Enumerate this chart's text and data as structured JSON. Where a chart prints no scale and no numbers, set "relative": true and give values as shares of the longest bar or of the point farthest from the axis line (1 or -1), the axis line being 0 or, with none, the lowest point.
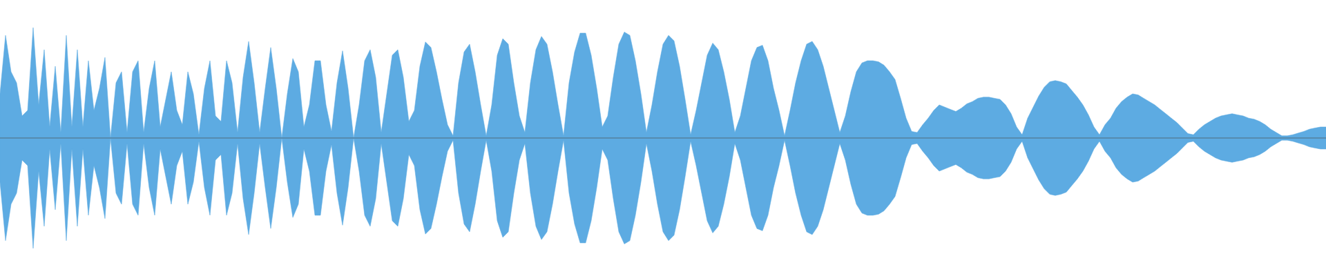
{
  "chart_data": {
    "type": "area",
    "relative": true,
    "categories": [
      null,
      null,
      null,
      null,
      null,
      null,
      null,
      null,
      null,
      null,
      null,
      null,
      null,
      null,
      null,
      null,
      null,
      null,
      null,
      null,
      null,
      null,
      null,
      null,
      null,
      null,
      null,
      null,
      null,
      null,
      null,
      null,
      null,
      null,
      null,
      null,
      null,
      null,
      null,
      null,
      null,
      null,
      null,
      null,
      null,
      null,
      null,
      null,
      null,
      null,
      null,
      null,
      null,
      null,
      null,
      null,
      null,
      null,
      null,
      null,
      null,
      null,
      null,
      null,
      null,
      null,
      null,
      null,
      null,
      null,
      null,
      null,
      null,
      null,
      null,
      null,
      null,
      null,
      null,
      null,
      null,
      null,
      null,
      null,
      null,
      null,
      null,
      null,
      null,
      null,
      null,
      null,
      null,
      null,
      null,
      null,
      null,
      null,
      null,
      null,
      null,
      null,
      null,
      null,
      null,
      null,
      null,
      null,
      null,
      null,
      null,
      null,
      null,
      null,
      null,
      null,
      null,
      null,
      null,
      null,
      null,
      null,
      null,
      null,
      null,
      null,
      null,
      null,
      null,
      null,
      null,
      null,
      null,
      null,
      null,
      null,
      null,
      null,
      null,
      null,
      null,
      null,
      null,
      null,
      null,
      null,
      null,
      null,
      null,
      null,
      null,
      null,
      null,
      null,
      null,
      null,
      null,
      null,
      null,
      null,
      null,
      null,
      null,
      null,
      null,
      null,
      null,
      null,
      null,
      null,
      null,
      null,
      null,
      null,
      null,
      null,
      null,
      null,
      null,
      null,
      null,
      null,
      null,
      null,
      null,
      null,
      null,
      null,
      null,
      null,
      null,
      null,
      null,
      null,
      null,
      null,
      null,
      null,
      null,
      null,
      null,
      null,
      null,
      null,
      null,
      null,
      null,
      null,
      null,
      null,
      null,
      null,
      null,
      null,
      null,
      null,
      null,
      null,
      null,
      null,
      null,
      null,
      null,
      null,
      null,
      null,
      null,
      null,
      null,
      null,
      null,
      null,
      null,
      null,
      null,
      null,
      null,
      null,
      null,
      null,
      null
    ],
    "series": [
      {
        "color": "#5dabe2",
        "values": [
          0.4,
          0.93,
          0.6,
          0.5,
          0.2,
          0.25,
          1,
          0.3,
          0.8,
          0.1,
          0.65,
          0.05,
          0.93,
          0.1,
          0.8,
          0.1,
          0.7,
          0.25,
          0.45,
          0.73,
          0,
          0.5,
          0.6,
          0.05,
          0.6,
          0.7,
          0.05,
          0.45,
          0.7,
          0.1,
          0.35,
          0.6,
          0.25,
          0.12,
          0.6,
          0.4,
          0.03,
          0.45,
          0.7,
          0.2,
          0.15,
          0.7,
          0.5,
          0.05,
          0.55,
          0.875,
          0.5,
          0.05,
          0.45,
          0.82,
          0.45,
          0,
          0.4,
          0.72,
          0.6,
          0.1,
          0.3,
          0.7,
          0.7,
          0.3,
          0.06,
          0.5,
          0.79,
          0.45,
          0,
          0.3,
          0.7,
          0.8,
          0.55,
          0.05,
          0.4,
          0.75,
          0.8,
          0.55,
          0.15,
          0.25,
          0.65,
          0.87,
          0.82,
          0.6,
          0.35,
          0.12,
          0.02,
          0.5,
          0.78,
          0.85,
          0.6,
          0.3,
          0.02,
          0.3,
          0.75,
          0.9,
          0.85,
          0.5,
          0.2,
          0.05,
          0.5,
          0.8,
          0.92,
          0.85,
          0.6,
          0.3,
          0.02,
          0.5,
          0.78,
          0.95,
          0.95,
          0.75,
          0.45,
          0.1,
          0.2,
          0.55,
          0.85,
          0.96,
          0.93,
          0.7,
          0.4,
          0.05,
          0.3,
          0.6,
          0.85,
          0.93,
          0.88,
          0.65,
          0.35,
          0.03,
          0.25,
          0.5,
          0.75,
          0.86,
          0.8,
          0.6,
          0.35,
          0.05,
          0.2,
          0.45,
          0.7,
          0.82,
          0.84,
          0.7,
          0.45,
          0.25,
          0.02,
          0.25,
          0.5,
          0.7,
          0.85,
          0.875,
          0.8,
          0.65,
          0.45,
          0.25,
          0.05,
          0.2,
          0.42,
          0.6,
          0.68,
          0.7,
          0.7,
          0.69,
          0.66,
          0.6,
          0.53,
          0.36,
          0.18,
          0.06,
          0.05,
          0.12,
          0.18,
          0.25,
          0.3,
          0.28,
          0.26,
          0.24,
          0.27,
          0.31,
          0.33,
          0.36,
          0.37,
          0.37,
          0.36,
          0.35,
          0.3,
          0.22,
          0.1,
          0.03,
          0.18,
          0.28,
          0.38,
          0.46,
          0.51,
          0.52,
          0.51,
          0.49,
          0.43,
          0.37,
          0.3,
          0.21,
          0.1,
          0.03,
          0.12,
          0.18,
          0.27,
          0.33,
          0.37,
          0.4,
          0.39,
          0.36,
          0.33,
          0.3,
          0.26,
          0.22,
          0.18,
          0.14,
          0.09,
          0.04,
          0.03,
          0.08,
          0.12,
          0.15,
          0.18,
          0.2,
          0.21,
          0.22,
          0.21,
          0.2,
          0.18,
          0.17,
          0.15,
          0.12,
          0.08,
          0.05,
          0.02,
          0.02,
          0.03,
          0.045,
          0.06,
          0.08,
          0.09,
          0.1,
          0.1
        ]
      },
      {
        "color": "#5dabe2",
        "values": [
          -0.4,
          -0.93,
          -0.6,
          -0.5,
          -0.2,
          -0.25,
          -1,
          -0.3,
          -0.8,
          -0.1,
          -0.65,
          -0.05,
          -0.93,
          -0.1,
          -0.8,
          -0.1,
          -0.7,
          -0.25,
          -0.45,
          -0.73,
          0,
          -0.5,
          -0.6,
          -0.05,
          -0.6,
          -0.7,
          -0.05,
          -0.45,
          -0.7,
          -0.1,
          -0.35,
          -0.6,
          -0.25,
          -0.12,
          -0.6,
          -0.4,
          -0.03,
          -0.45,
          -0.7,
          -0.2,
          -0.15,
          -0.7,
          -0.5,
          -0.05,
          -0.55,
          -0.875,
          -0.5,
          -0.05,
          -0.45,
          -0.82,
          -0.45,
          0,
          -0.4,
          -0.72,
          -0.6,
          -0.1,
          -0.3,
          -0.7,
          -0.7,
          -0.3,
          -0.06,
          -0.5,
          -0.79,
          -0.45,
          0,
          -0.3,
          -0.7,
          -0.8,
          -0.55,
          -0.05,
          -0.4,
          -0.75,
          -0.8,
          -0.55,
          -0.15,
          -0.25,
          -0.65,
          -0.87,
          -0.82,
          -0.6,
          -0.35,
          -0.12,
          -0.02,
          -0.5,
          -0.78,
          -0.85,
          -0.6,
          -0.3,
          -0.02,
          -0.3,
          -0.75,
          -0.9,
          -0.85,
          -0.5,
          -0.2,
          -0.05,
          -0.5,
          -0.8,
          -0.92,
          -0.85,
          -0.6,
          -0.3,
          -0.02,
          -0.5,
          -0.78,
          -0.95,
          -0.95,
          -0.75,
          -0.45,
          -0.1,
          -0.2,
          -0.55,
          -0.85,
          -0.96,
          -0.93,
          -0.7,
          -0.4,
          -0.05,
          -0.3,
          -0.6,
          -0.85,
          -0.93,
          -0.88,
          -0.65,
          -0.35,
          -0.03,
          -0.25,
          -0.5,
          -0.75,
          -0.86,
          -0.8,
          -0.6,
          -0.35,
          -0.05,
          -0.2,
          -0.45,
          -0.7,
          -0.82,
          -0.84,
          -0.7,
          -0.45,
          -0.25,
          -0.02,
          -0.25,
          -0.5,
          -0.7,
          -0.85,
          -0.875,
          -0.8,
          -0.65,
          -0.45,
          -0.25,
          -0.05,
          -0.2,
          -0.42,
          -0.6,
          -0.68,
          -0.7,
          -0.7,
          -0.69,
          -0.66,
          -0.6,
          -0.53,
          -0.36,
          -0.18,
          -0.06,
          -0.05,
          -0.12,
          -0.18,
          -0.25,
          -0.3,
          -0.28,
          -0.26,
          -0.24,
          -0.27,
          -0.31,
          -0.33,
          -0.36,
          -0.37,
          -0.37,
          -0.36,
          -0.35,
          -0.3,
          -0.22,
          -0.1,
          -0.03,
          -0.18,
          -0.28,
          -0.38,
          -0.46,
          -0.51,
          -0.52,
          -0.51,
          -0.49,
          -0.43,
          -0.37,
          -0.3,
          -0.21,
          -0.1,
          -0.03,
          -0.12,
          -0.18,
          -0.27,
          -0.33,
          -0.37,
          -0.4,
          -0.39,
          -0.36,
          -0.33,
          -0.3,
          -0.26,
          -0.22,
          -0.18,
          -0.14,
          -0.09,
          -0.04,
          -0.03,
          -0.08,
          -0.12,
          -0.15,
          -0.18,
          -0.2,
          -0.21,
          -0.22,
          -0.21,
          -0.2,
          -0.18,
          -0.17,
          -0.15,
          -0.12,
          -0.08,
          -0.05,
          -0.02,
          -0.02,
          -0.03,
          -0.045,
          -0.06,
          -0.08,
          -0.09,
          -0.1,
          -0.1
        ]
      }
    ]
  }
}
